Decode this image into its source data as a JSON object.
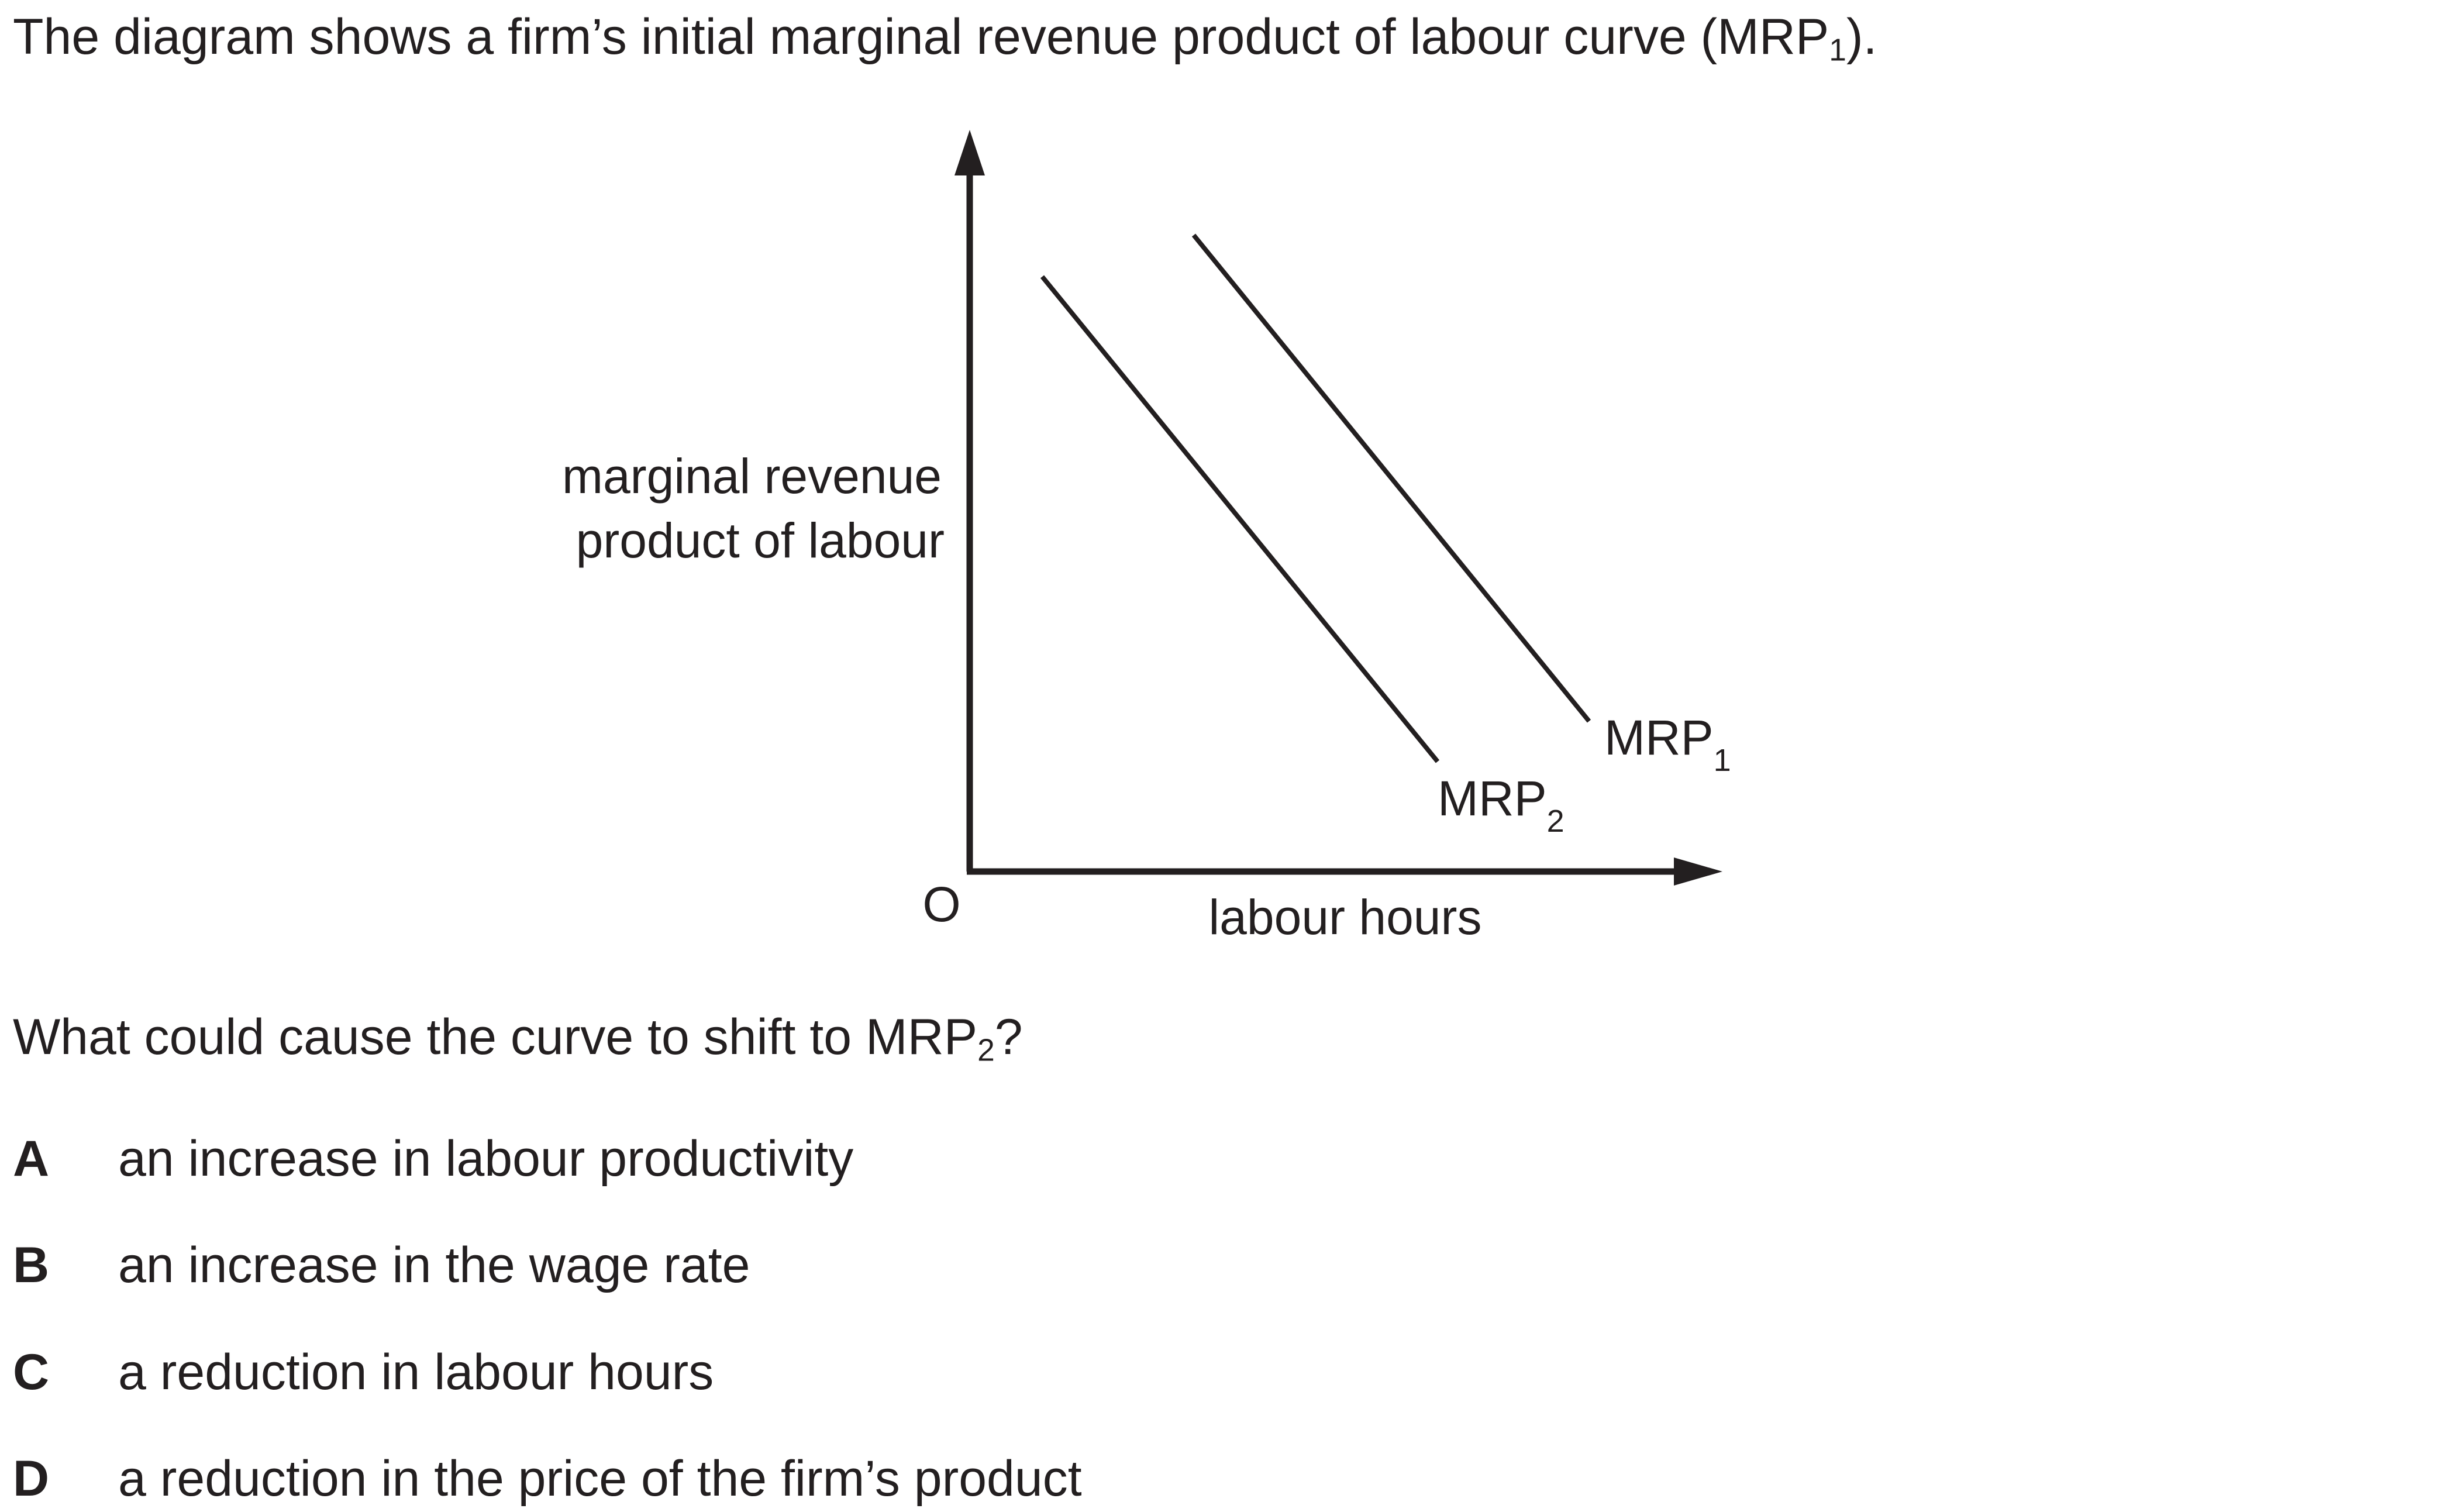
{
  "intro": {
    "text": "The diagram shows a firm’s initial marginal revenue product of labour curve (MRP",
    "sub": "1",
    "end": ")."
  },
  "diagram": {
    "y_axis_label_line1": "marginal revenue",
    "y_axis_label_line2": "product of labour",
    "x_axis_label": "labour hours",
    "origin_label": "O",
    "curve1": {
      "label": "MRP",
      "sub": "1"
    },
    "curve2": {
      "label": "MRP",
      "sub": "2"
    }
  },
  "question": {
    "text": "What could cause the curve to shift to MRP",
    "sub": "2",
    "end": "?"
  },
  "options": [
    {
      "letter": "A",
      "text": "an increase in labour productivity"
    },
    {
      "letter": "B",
      "text": "an increase in the wage rate"
    },
    {
      "letter": "C",
      "text": "a reduction in labour hours"
    },
    {
      "letter": "D",
      "text": "a reduction in the price of the firm’s product"
    }
  ]
}
